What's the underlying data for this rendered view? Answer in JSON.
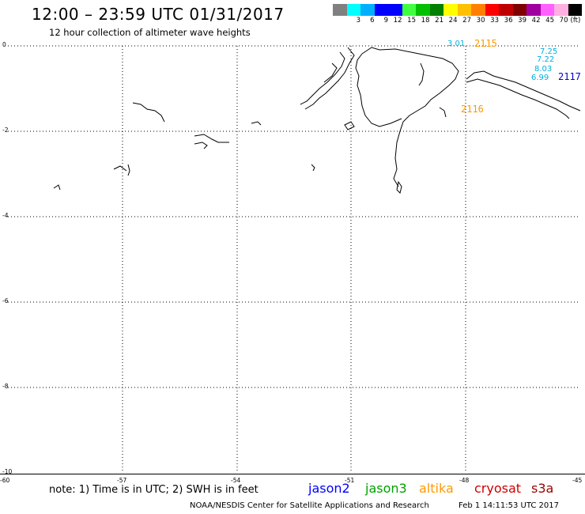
{
  "header": {
    "title": "12:00 – 23:59 UTC 01/31/2017",
    "subtitle": "12 hour collection of altimeter wave heights"
  },
  "colorbar": {
    "colors": [
      "#808080",
      "#00ffff",
      "#00b0ff",
      "#0000ff",
      "#0000ff",
      "#40ff40",
      "#00c000",
      "#008000",
      "#ffff00",
      "#ffc000",
      "#ff8000",
      "#ff0000",
      "#c00000",
      "#800000",
      "#a000a0",
      "#ff60ff",
      "#ffb0e0",
      "#000000"
    ],
    "labels": [
      "3",
      "6",
      "9",
      "12",
      "15",
      "18",
      "21",
      "24",
      "27",
      "30",
      "33",
      "36",
      "39",
      "42",
      "45",
      "70"
    ],
    "unit": "(ft)"
  },
  "axes": {
    "y_ticks": [
      "0",
      "-2",
      "-4",
      "-6",
      "-8",
      "-10"
    ],
    "x_ticks": [
      "-60",
      "-57",
      "-54",
      "-51",
      "-48",
      "-45"
    ]
  },
  "tracks": [
    {
      "id": "2115",
      "color": "#ff9900"
    },
    {
      "id": "2116",
      "color": "#ff9900"
    },
    {
      "id": "2117",
      "color": "#0000cc"
    }
  ],
  "swh_values": [
    {
      "value": "3.01",
      "color": "#00b0e0"
    },
    {
      "value": "7.25",
      "color": "#00b0e0"
    },
    {
      "value": "7.22",
      "color": "#00b0e0"
    },
    {
      "value": "8.03",
      "color": "#00b0e0"
    },
    {
      "value": "6.99",
      "color": "#00b0e0"
    }
  ],
  "note": "note: 1) Time is in UTC; 2) SWH is in feet",
  "legend": [
    {
      "name": "jason2",
      "color": "#0000ff"
    },
    {
      "name": "jason3",
      "color": "#00a000"
    },
    {
      "name": "altika",
      "color": "#ff9900"
    },
    {
      "name": "cryosat",
      "color": "#cc0000"
    },
    {
      "name": "s3a",
      "color": "#990000"
    }
  ],
  "footer": {
    "credit": "NOAA/NESDIS Center for Satellite Applications and Research",
    "timestamp": "Feb  1 14:11:53 UTC 2017"
  }
}
